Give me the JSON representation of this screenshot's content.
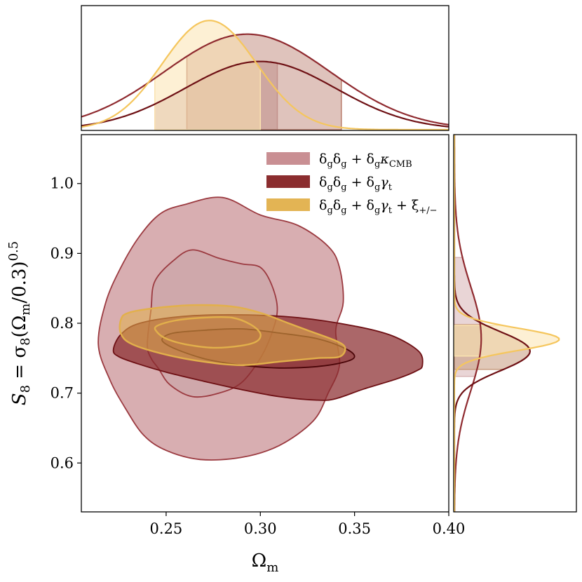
{
  "chart_data": {
    "type": "scatter",
    "subtype": "corner-plot",
    "xlabel": "Ωm",
    "ylabel": "S8 = σ8(Ωm/0.3)^0.5",
    "xlim": [
      0.205,
      0.4
    ],
    "ylim": [
      0.53,
      1.07
    ],
    "xticks": [
      0.25,
      0.3,
      0.35,
      0.4
    ],
    "xtick_labels": [
      "0.25",
      "0.30",
      "0.35",
      "0.40"
    ],
    "yticks": [
      0.6,
      0.7,
      0.8,
      0.9,
      1.0
    ],
    "ytick_labels": [
      "0.6",
      "0.7",
      "0.8",
      "0.9",
      "1.0"
    ],
    "grid": false,
    "legend_position": "top-right",
    "colors": {
      "kcmb": "#c98f93",
      "gt": "#8b2d2f",
      "xi": "#e2b04b",
      "kcmb_line": "#9b3a40",
      "gt_line": "#6e1014",
      "xi_line": "#f2c35a"
    },
    "series": [
      {
        "name": "δgδg + δgκCMB",
        "label_parts": {
          "a": "δ",
          "sa": "g",
          "b": "δ",
          "sb": "g",
          "c": " + δ",
          "sc": "g",
          "d": "κ",
          "sd": "CMB"
        },
        "omega_m": {
          "mean": 0.3,
          "sigma": 0.04,
          "interval_68": [
            0.244,
            0.309
          ]
        },
        "s8": {
          "mean": 0.778,
          "sigma": 0.075,
          "interval_68": [
            0.724,
            0.894
          ]
        },
        "contour_95": [
          [
            0.214,
            0.77
          ],
          [
            0.218,
            0.83
          ],
          [
            0.226,
            0.88
          ],
          [
            0.236,
            0.925
          ],
          [
            0.247,
            0.957
          ],
          [
            0.26,
            0.97
          ],
          [
            0.28,
            0.98
          ],
          [
            0.3,
            0.955
          ],
          [
            0.32,
            0.94
          ],
          [
            0.336,
            0.91
          ],
          [
            0.342,
            0.88
          ],
          [
            0.344,
            0.83
          ],
          [
            0.34,
            0.79
          ],
          [
            0.342,
            0.74
          ],
          [
            0.336,
            0.7
          ],
          [
            0.328,
            0.66
          ],
          [
            0.31,
            0.625
          ],
          [
            0.29,
            0.608
          ],
          [
            0.268,
            0.605
          ],
          [
            0.25,
            0.618
          ],
          [
            0.238,
            0.64
          ],
          [
            0.228,
            0.68
          ],
          [
            0.22,
            0.72
          ]
        ],
        "contour_68": [
          [
            0.24,
            0.77
          ],
          [
            0.242,
            0.82
          ],
          [
            0.244,
            0.86
          ],
          [
            0.254,
            0.89
          ],
          [
            0.264,
            0.905
          ],
          [
            0.278,
            0.893
          ],
          [
            0.29,
            0.885
          ],
          [
            0.3,
            0.88
          ],
          [
            0.306,
            0.855
          ],
          [
            0.309,
            0.82
          ],
          [
            0.306,
            0.785
          ],
          [
            0.3,
            0.75
          ],
          [
            0.29,
            0.715
          ],
          [
            0.278,
            0.7
          ],
          [
            0.264,
            0.695
          ],
          [
            0.252,
            0.712
          ],
          [
            0.246,
            0.735
          ],
          [
            0.242,
            0.75
          ]
        ]
      },
      {
        "name": "δgδg + δgγt",
        "label_parts": {
          "a": "δ",
          "sa": "g",
          "b": "δ",
          "sb": "g",
          "c": " + δ",
          "sc": "g",
          "d": "γ",
          "sd": "t"
        },
        "omega_m": {
          "mean": 0.293,
          "sigma": 0.044,
          "interval_68": [
            0.261,
            0.343
          ]
        },
        "s8": {
          "mean": 0.76,
          "sigma": 0.028,
          "interval_68": [
            0.734,
            0.798
          ]
        },
        "contour_95": [
          [
            0.222,
            0.762
          ],
          [
            0.226,
            0.784
          ],
          [
            0.236,
            0.8
          ],
          [
            0.26,
            0.81
          ],
          [
            0.29,
            0.812
          ],
          [
            0.32,
            0.808
          ],
          [
            0.35,
            0.796
          ],
          [
            0.37,
            0.782
          ],
          [
            0.384,
            0.76
          ],
          [
            0.386,
            0.74
          ],
          [
            0.383,
            0.732
          ],
          [
            0.372,
            0.72
          ],
          [
            0.355,
            0.706
          ],
          [
            0.34,
            0.692
          ],
          [
            0.33,
            0.69
          ],
          [
            0.31,
            0.695
          ],
          [
            0.29,
            0.705
          ],
          [
            0.27,
            0.717
          ],
          [
            0.25,
            0.73
          ],
          [
            0.235,
            0.742
          ],
          [
            0.225,
            0.752
          ]
        ],
        "contour_68": [
          [
            0.248,
            0.778
          ],
          [
            0.254,
            0.786
          ],
          [
            0.27,
            0.79
          ],
          [
            0.29,
            0.792
          ],
          [
            0.31,
            0.786
          ],
          [
            0.33,
            0.778
          ],
          [
            0.345,
            0.764
          ],
          [
            0.35,
            0.752
          ],
          [
            0.344,
            0.744
          ],
          [
            0.33,
            0.738
          ],
          [
            0.31,
            0.736
          ],
          [
            0.29,
            0.74
          ],
          [
            0.272,
            0.748
          ],
          [
            0.258,
            0.76
          ],
          [
            0.25,
            0.77
          ]
        ]
      },
      {
        "name": "δgδg + δgγt + ξ+/−",
        "label_parts": {
          "a": "δ",
          "sa": "g",
          "b": "δ",
          "sb": "g",
          "c": " + δ",
          "sc": "g",
          "d": "γ",
          "sd": "t",
          "e": " + ξ",
          "se": "+/−"
        },
        "omega_m": {
          "mean": 0.273,
          "sigma": 0.025,
          "interval_68": [
            0.244,
            0.3
          ]
        },
        "s8": {
          "mean": 0.777,
          "sigma": 0.016,
          "interval_68": [
            0.753,
            0.797
          ]
        },
        "contour_95": [
          [
            0.226,
            0.805
          ],
          [
            0.23,
            0.815
          ],
          [
            0.245,
            0.822
          ],
          [
            0.265,
            0.826
          ],
          [
            0.285,
            0.824
          ],
          [
            0.3,
            0.815
          ],
          [
            0.315,
            0.8
          ],
          [
            0.325,
            0.79
          ],
          [
            0.34,
            0.775
          ],
          [
            0.345,
            0.765
          ],
          [
            0.342,
            0.752
          ],
          [
            0.33,
            0.75
          ],
          [
            0.31,
            0.745
          ],
          [
            0.29,
            0.74
          ],
          [
            0.27,
            0.745
          ],
          [
            0.25,
            0.755
          ],
          [
            0.232,
            0.77
          ],
          [
            0.226,
            0.785
          ]
        ],
        "contour_68": [
          [
            0.245,
            0.796
          ],
          [
            0.255,
            0.804
          ],
          [
            0.27,
            0.808
          ],
          [
            0.285,
            0.808
          ],
          [
            0.295,
            0.798
          ],
          [
            0.3,
            0.785
          ],
          [
            0.298,
            0.774
          ],
          [
            0.29,
            0.768
          ],
          [
            0.275,
            0.765
          ],
          [
            0.26,
            0.77
          ],
          [
            0.25,
            0.778
          ],
          [
            0.245,
            0.788
          ]
        ]
      }
    ]
  }
}
